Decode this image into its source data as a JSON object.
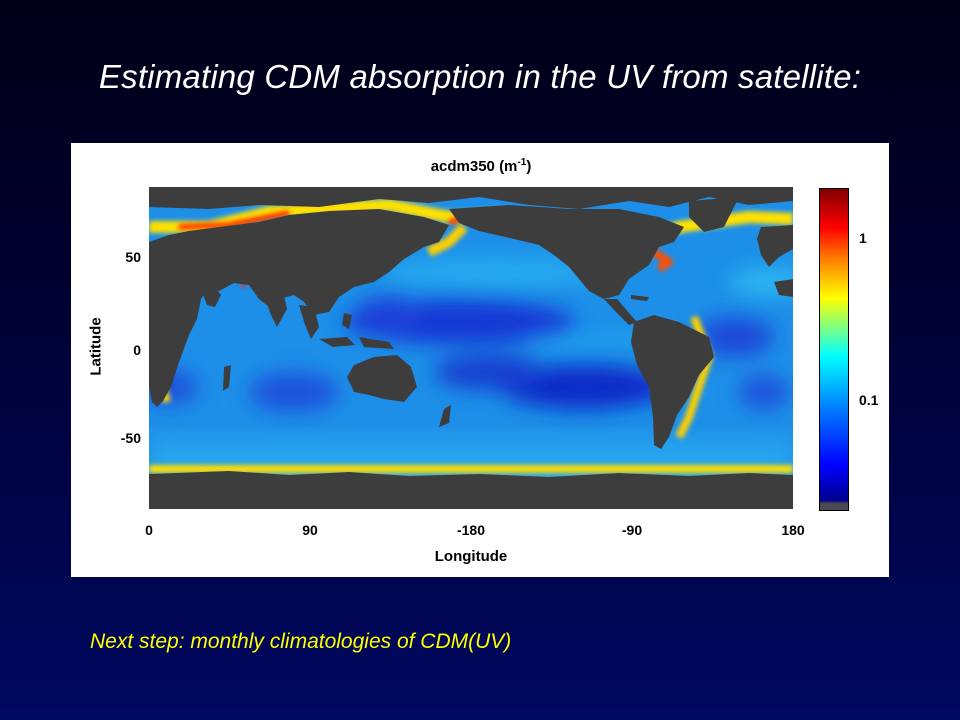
{
  "slide": {
    "title": "Estimating CDM absorption in the UV from satellite:",
    "footer": "Next step: monthly climatologies of CDM(UV)"
  },
  "map": {
    "title_main": "acdm350 (m",
    "title_exp": "-1",
    "title_close": ")",
    "xlabel": "Longitude",
    "ylabel": "Latitude",
    "x_ticks": [
      "0",
      "90",
      "-180",
      "-90",
      "180"
    ],
    "y_ticks": [
      "50",
      "0",
      "-50"
    ],
    "colorbar_ticks": [
      "1",
      "0.1"
    ],
    "colorbar_scale": "log",
    "colormap": "jet",
    "land_color": "#3d3d3d",
    "open_ocean_color": "#1e8ee8",
    "oligotrophic_gyre_color": "#1238d0",
    "coastal_high_color": "#ff3000"
  }
}
